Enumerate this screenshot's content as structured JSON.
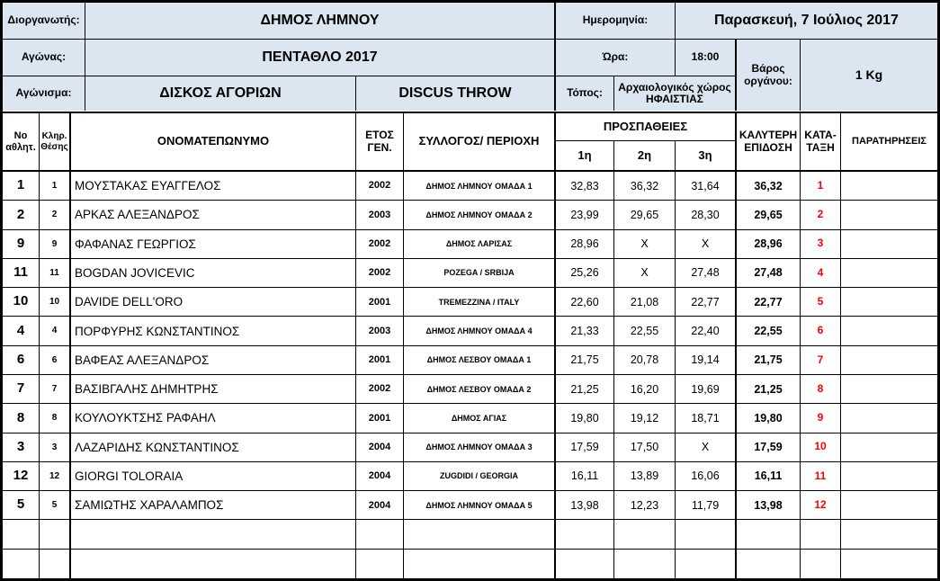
{
  "sheet": {
    "colors": {
      "header_bg": "#dce6f1",
      "rank_color": "#ff0000",
      "border": "#000000"
    },
    "info": {
      "organizer_label": "Διοργανωτής:",
      "organizer": "ΔΗΜΟΣ ΛΗΜΝΟΥ",
      "date_label": "Ημερομηνία:",
      "date": "Παρασκευή, 7 Ιούλιος 2017",
      "competition_label": "Αγώνας:",
      "competition": "ΠΕΝΤΑΘΛΟ 2017",
      "time_label": "Ώρα:",
      "time": "18:00",
      "event_label": "Αγώνισμα:",
      "event_gr": "ΔΙΣΚΟΣ ΑΓΟΡΙΩΝ",
      "event_en": "DISCUS THROW",
      "place_label": "Τόπος:",
      "place": "Αρχαιολογικός χώρος ΗΦΑΙΣΤΙΑΣ",
      "weight_label": "Βάρος οργάνου:",
      "weight": "1 Kg"
    },
    "columns": {
      "no": "No αθλητ.",
      "draw": "Κληρ. Θέσης",
      "name": "ΟΝΟΜΑΤΕΠΩΝΥΜΟ",
      "year": "ΕΤΟΣ ΓΕΝ.",
      "club": "ΣΥΛΛΟΓΟΣ/ ΠΕΡΙΟΧΗ",
      "attempts": "ΠΡΟΣΠΑΘΕΙΕΣ",
      "attempt1": "1η",
      "attempt2": "2η",
      "attempt3": "3η",
      "best": "ΚΑΛΥΤΕΡΗ ΕΠΙΔΟΣΗ",
      "rank": "ΚΑΤΑ-ΤΑΞΗ",
      "notes": "ΠΑΡΑΤΗΡΗΣΕΙΣ"
    },
    "rows": [
      {
        "no": "1",
        "draw": "1",
        "name": "ΜΟΥΣΤΑΚΑΣ ΕΥΑΓΓΕΛΟΣ",
        "year": "2002",
        "club": "ΔΗΜΟΣ ΛΗΜΝΟΥ ΟΜΑΔΑ 1",
        "a1": "32,83",
        "a2": "36,32",
        "a3": "31,64",
        "best": "36,32",
        "rank": "1",
        "notes": ""
      },
      {
        "no": "2",
        "draw": "2",
        "name": "ΑΡΚΑΣ ΑΛΕΞΑΝΔΡΟΣ",
        "year": "2003",
        "club": "ΔΗΜΟΣ ΛΗΜΝΟΥ ΟΜΑΔΑ 2",
        "a1": "23,99",
        "a2": "29,65",
        "a3": "28,30",
        "best": "29,65",
        "rank": "2",
        "notes": ""
      },
      {
        "no": "9",
        "draw": "9",
        "name": "ΦΑΦΑΝΑΣ ΓΕΩΡΓΙΟΣ",
        "year": "2002",
        "club": "ΔΗΜΟΣ ΛΑΡΙΣΑΣ",
        "a1": "28,96",
        "a2": "X",
        "a3": "X",
        "best": "28,96",
        "rank": "3",
        "notes": ""
      },
      {
        "no": "11",
        "draw": "11",
        "name": "BOGDAN JOVICEVIC",
        "year": "2002",
        "club": "POZEGA / SRBIJA",
        "a1": "25,26",
        "a2": "X",
        "a3": "27,48",
        "best": "27,48",
        "rank": "4",
        "notes": ""
      },
      {
        "no": "10",
        "draw": "10",
        "name": "DAVIDE DELL'ORO",
        "year": "2001",
        "club": "TREMEZZINA / ITALY",
        "a1": "22,60",
        "a2": "21,08",
        "a3": "22,77",
        "best": "22,77",
        "rank": "5",
        "notes": ""
      },
      {
        "no": "4",
        "draw": "4",
        "name": "ΠΟΡΦΥΡΗΣ ΚΩΝΣΤΑΝΤΙΝΟΣ",
        "year": "2003",
        "club": "ΔΗΜΟΣ ΛΗΜΝΟΥ ΟΜΑΔΑ 4",
        "a1": "21,33",
        "a2": "22,55",
        "a3": "22,40",
        "best": "22,55",
        "rank": "6",
        "notes": ""
      },
      {
        "no": "6",
        "draw": "6",
        "name": "ΒΑΦΕΑΣ ΑΛΕΞΑΝΔΡΟΣ",
        "year": "2001",
        "club": "ΔΗΜΟΣ ΛΕΣΒΟΥ ΟΜΑΔΑ 1",
        "a1": "21,75",
        "a2": "20,78",
        "a3": "19,14",
        "best": "21,75",
        "rank": "7",
        "notes": ""
      },
      {
        "no": "7",
        "draw": "7",
        "name": "ΒΑΣΙΒΓΑΛΗΣ ΔΗΜΗΤΡΗΣ",
        "year": "2002",
        "club": "ΔΗΜΟΣ ΛΕΣΒΟΥ ΟΜΑΔΑ 2",
        "a1": "21,25",
        "a2": "16,20",
        "a3": "19,69",
        "best": "21,25",
        "rank": "8",
        "notes": ""
      },
      {
        "no": "8",
        "draw": "8",
        "name": "ΚΟΥΛΟΥΚΤΣΗΣ ΡΑΦΑΗΛ",
        "year": "2001",
        "club": "ΔΗΜΟΣ ΑΓΙΑΣ",
        "a1": "19,80",
        "a2": "19,12",
        "a3": "18,71",
        "best": "19,80",
        "rank": "9",
        "notes": ""
      },
      {
        "no": "3",
        "draw": "3",
        "name": "ΛΑΖΑΡΙΔΗΣ ΚΩΝΣΤΑΝΤΙΝΟΣ",
        "year": "2004",
        "club": "ΔΗΜΟΣ ΛΗΜΝΟΥ ΟΜΑΔΑ 3",
        "a1": "17,59",
        "a2": "17,50",
        "a3": "X",
        "best": "17,59",
        "rank": "10",
        "notes": ""
      },
      {
        "no": "12",
        "draw": "12",
        "name": "GIORGI TOLORAIA",
        "year": "2004",
        "club": "ZUGDIDI / GEORGIA",
        "a1": "16,11",
        "a2": "13,89",
        "a3": "16,06",
        "best": "16,11",
        "rank": "11",
        "notes": ""
      },
      {
        "no": "5",
        "draw": "5",
        "name": "ΣΑΜΙΩΤΗΣ ΧΑΡΑΛΑΜΠΟΣ",
        "year": "2004",
        "club": "ΔΗΜΟΣ ΛΗΜΝΟΥ ΟΜΑΔΑ 5",
        "a1": "13,98",
        "a2": "12,23",
        "a3": "11,79",
        "best": "13,98",
        "rank": "12",
        "notes": ""
      }
    ],
    "empty_rows": 2
  }
}
